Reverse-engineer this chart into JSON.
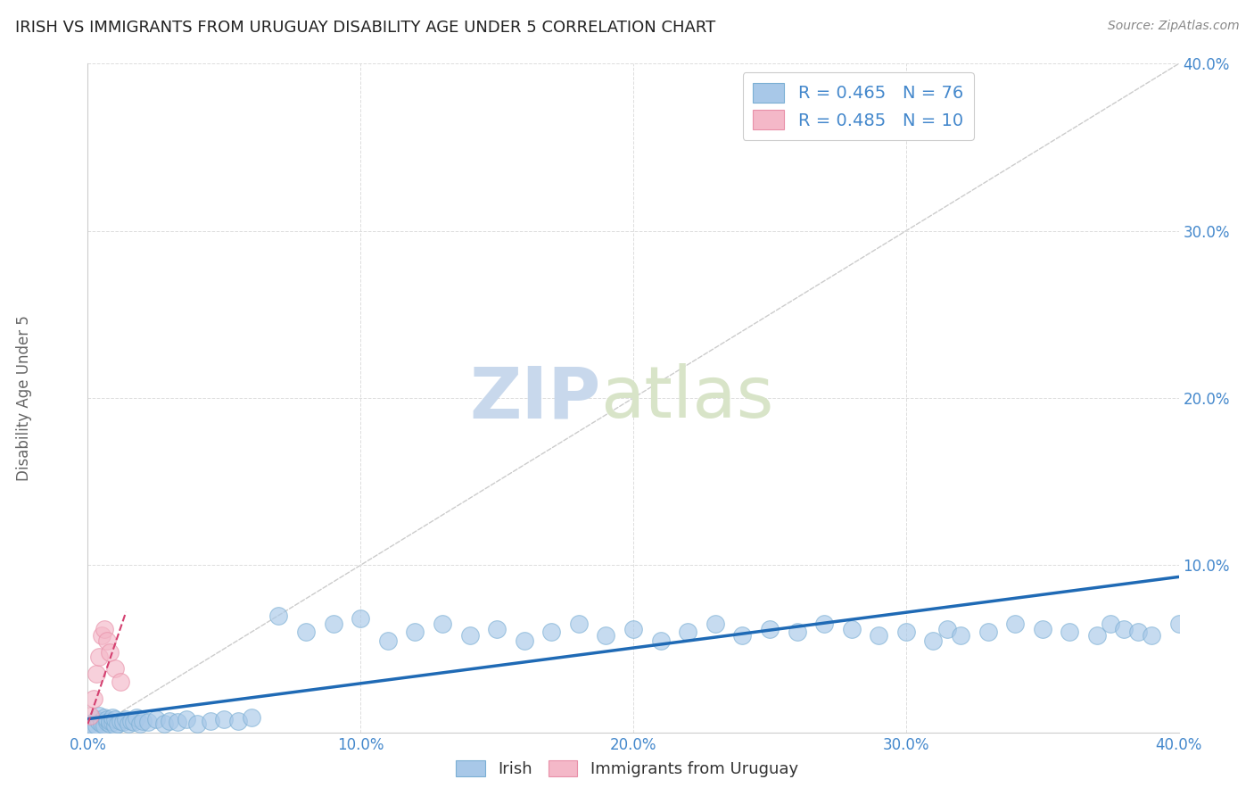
{
  "title": "IRISH VS IMMIGRANTS FROM URUGUAY DISABILITY AGE UNDER 5 CORRELATION CHART",
  "source": "Source: ZipAtlas.com",
  "ylabel": "Disability Age Under 5",
  "xlim": [
    0.0,
    0.4
  ],
  "ylim": [
    0.0,
    0.4
  ],
  "xticks": [
    0.0,
    0.1,
    0.2,
    0.3,
    0.4
  ],
  "yticks": [
    0.0,
    0.1,
    0.2,
    0.3,
    0.4
  ],
  "xticklabels": [
    "0.0%",
    "10.0%",
    "20.0%",
    "30.0%",
    "40.0%"
  ],
  "yticklabels": [
    "",
    "10.0%",
    "20.0%",
    "30.0%",
    "40.0%"
  ],
  "irish_color": "#a8c8e8",
  "irish_edge_color": "#7bafd4",
  "uruguay_color": "#f4b8c8",
  "uruguay_edge_color": "#e890a8",
  "irish_trend_color": "#1f6ab5",
  "uruguay_trend_color": "#d44070",
  "irish_R": 0.465,
  "irish_N": 76,
  "uruguay_R": 0.485,
  "uruguay_N": 10,
  "legend_label_irish": "Irish",
  "legend_label_uruguay": "Immigrants from Uruguay",
  "watermark_zip": "ZIP",
  "watermark_atlas": "atlas",
  "background_color": "#ffffff",
  "grid_color": "#dddddd",
  "tick_color": "#4488cc",
  "ref_line_color": "#cccccc",
  "irish_x": [
    0.001,
    0.002,
    0.003,
    0.003,
    0.004,
    0.004,
    0.005,
    0.005,
    0.006,
    0.006,
    0.007,
    0.007,
    0.008,
    0.008,
    0.009,
    0.009,
    0.01,
    0.01,
    0.011,
    0.012,
    0.013,
    0.014,
    0.015,
    0.016,
    0.017,
    0.018,
    0.019,
    0.02,
    0.022,
    0.025,
    0.028,
    0.03,
    0.033,
    0.036,
    0.04,
    0.045,
    0.05,
    0.055,
    0.06,
    0.07,
    0.08,
    0.09,
    0.1,
    0.11,
    0.12,
    0.13,
    0.14,
    0.15,
    0.16,
    0.17,
    0.18,
    0.19,
    0.2,
    0.21,
    0.22,
    0.23,
    0.24,
    0.25,
    0.26,
    0.27,
    0.28,
    0.29,
    0.3,
    0.31,
    0.315,
    0.32,
    0.33,
    0.34,
    0.35,
    0.36,
    0.37,
    0.375,
    0.38,
    0.385,
    0.39,
    0.4
  ],
  "irish_y": [
    0.005,
    0.003,
    0.008,
    0.004,
    0.006,
    0.01,
    0.007,
    0.005,
    0.009,
    0.004,
    0.006,
    0.008,
    0.005,
    0.007,
    0.006,
    0.009,
    0.004,
    0.008,
    0.005,
    0.007,
    0.006,
    0.008,
    0.005,
    0.007,
    0.006,
    0.009,
    0.005,
    0.007,
    0.006,
    0.008,
    0.005,
    0.007,
    0.006,
    0.008,
    0.005,
    0.007,
    0.008,
    0.007,
    0.009,
    0.07,
    0.06,
    0.065,
    0.068,
    0.055,
    0.06,
    0.065,
    0.058,
    0.062,
    0.055,
    0.06,
    0.065,
    0.058,
    0.062,
    0.055,
    0.06,
    0.065,
    0.058,
    0.062,
    0.06,
    0.065,
    0.062,
    0.058,
    0.06,
    0.055,
    0.062,
    0.058,
    0.06,
    0.065,
    0.062,
    0.06,
    0.058,
    0.065,
    0.062,
    0.06,
    0.058,
    0.065
  ],
  "uruguay_x": [
    0.001,
    0.002,
    0.003,
    0.004,
    0.005,
    0.006,
    0.007,
    0.008,
    0.01,
    0.012
  ],
  "uruguay_y": [
    0.01,
    0.02,
    0.035,
    0.045,
    0.058,
    0.062,
    0.055,
    0.048,
    0.038,
    0.03
  ],
  "irish_trend_x": [
    0.0,
    0.4
  ],
  "irish_trend_y": [
    0.008,
    0.093
  ],
  "uruguay_trend_x": [
    0.0,
    0.014
  ],
  "uruguay_trend_y": [
    0.005,
    0.072
  ]
}
